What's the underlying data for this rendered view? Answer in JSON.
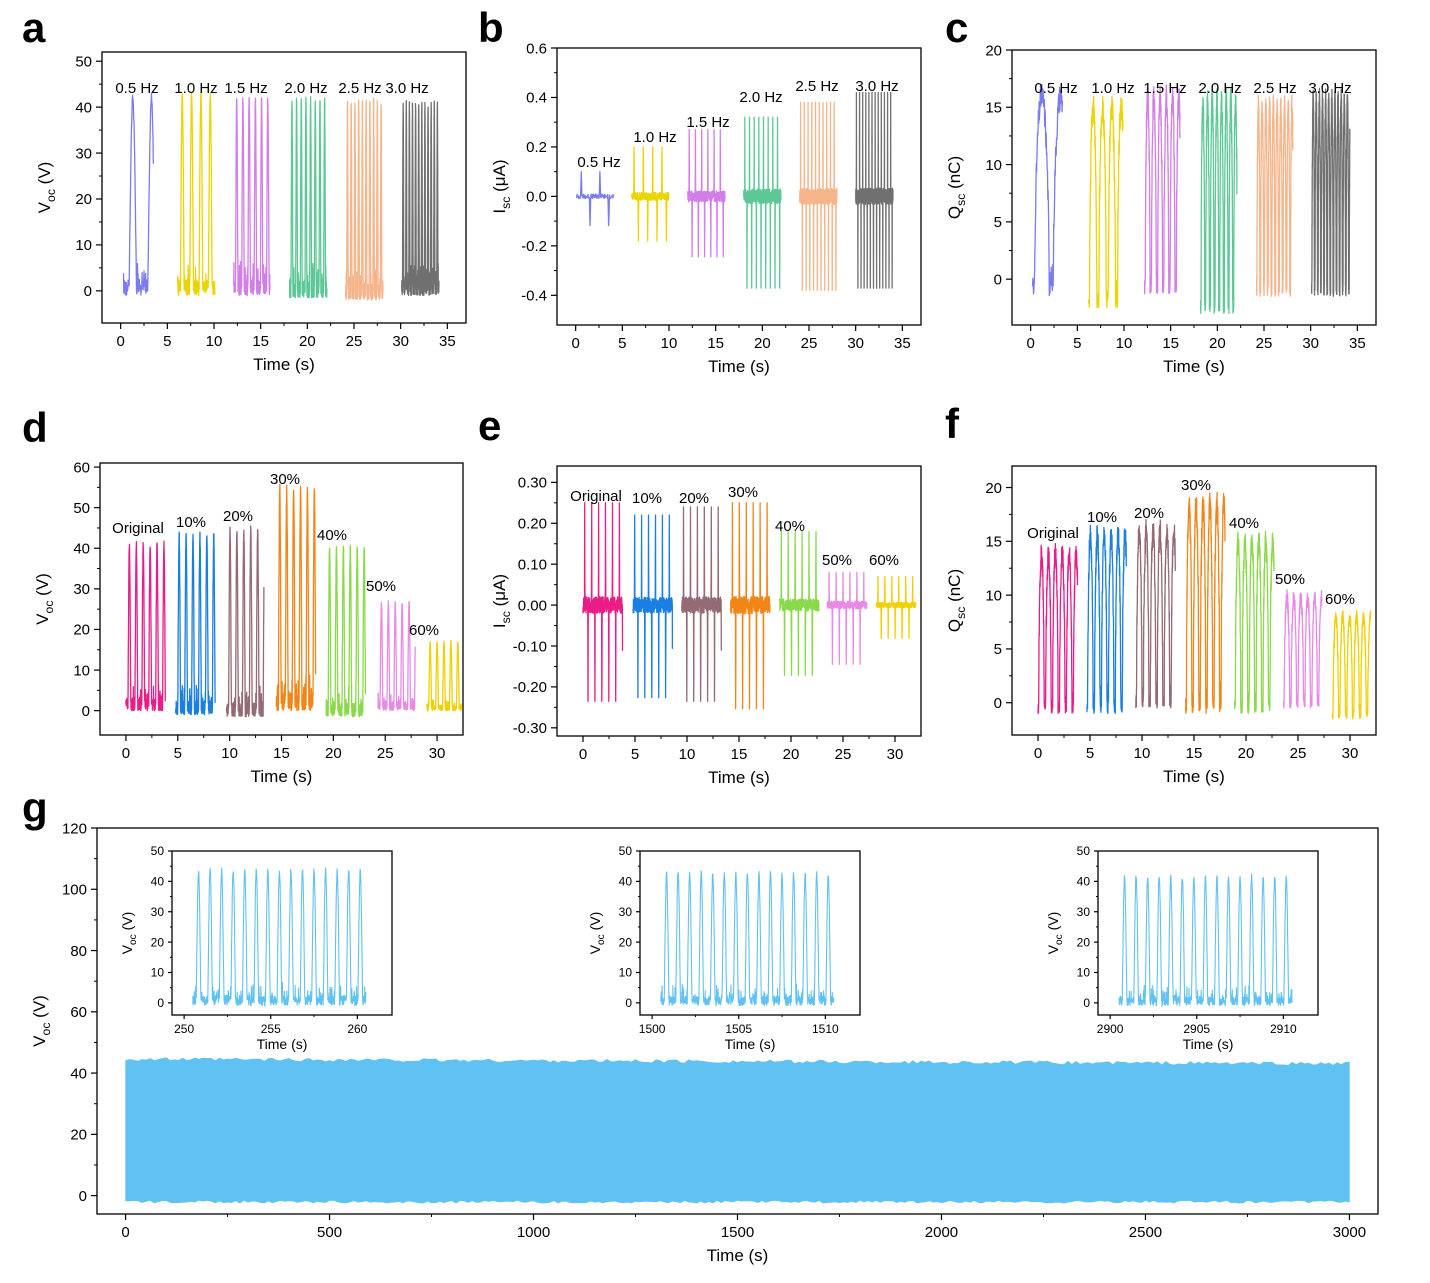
{
  "figure_labels": [
    "a",
    "b",
    "c",
    "d",
    "e",
    "f",
    "g"
  ],
  "colors": {
    "freq": [
      "#7b7bf0",
      "#ecd400",
      "#d17ee8",
      "#5cc896",
      "#f5b48a",
      "#707070"
    ],
    "comp": [
      "#ea1c86",
      "#1a7fe0",
      "#946a74",
      "#f28518",
      "#8ad94a",
      "#e889e6",
      "#f0d000"
    ],
    "endurance": "#60c2f2"
  },
  "chart_data": [
    {
      "panel": "a",
      "type": "line",
      "xlabel": "Time (s)",
      "ylabel_main": "V",
      "ylabel_sub": "oc",
      "ylabel_unit": " (V)",
      "xlim": [
        -2,
        37
      ],
      "ylim": [
        -7,
        52
      ],
      "xticks": [
        0,
        5,
        10,
        15,
        20,
        25,
        30,
        35
      ],
      "yticks": [
        0,
        10,
        20,
        30,
        40,
        50
      ],
      "series": [
        {
          "name": "0.5 Hz",
          "t_start": 0.3,
          "t_end": 3.5,
          "freq": 0.5,
          "peak": 42,
          "trough": -1
        },
        {
          "name": "1.0 Hz",
          "t_start": 6.1,
          "t_end": 10.1,
          "freq": 1.0,
          "peak": 42.5,
          "trough": -1
        },
        {
          "name": "1.5 Hz",
          "t_start": 12.1,
          "t_end": 16.0,
          "freq": 1.5,
          "peak": 41.5,
          "trough": -1
        },
        {
          "name": "2.0 Hz",
          "t_start": 18.1,
          "t_end": 22.1,
          "freq": 2.0,
          "peak": 41.5,
          "trough": -1.5
        },
        {
          "name": "2.5 Hz",
          "t_start": 24.1,
          "t_end": 28.1,
          "freq": 2.5,
          "peak": 41,
          "trough": -2
        },
        {
          "name": "3.0 Hz",
          "t_start": 30.1,
          "t_end": 34.1,
          "freq": 3.0,
          "peak": 40.5,
          "trough": -1
        }
      ]
    },
    {
      "panel": "b",
      "type": "line",
      "xlabel": "Time (s)",
      "ylabel_main": "I",
      "ylabel_sub": "sc",
      "ylabel_unit": " (μA)",
      "xlim": [
        -2,
        37
      ],
      "ylim": [
        -0.52,
        0.6
      ],
      "xticks": [
        0,
        5,
        10,
        15,
        20,
        25,
        30,
        35
      ],
      "yticks": [
        -0.4,
        -0.2,
        0.0,
        0.2,
        0.4,
        0.6
      ],
      "series": [
        {
          "name": "0.5 Hz",
          "t_start": 0.1,
          "t_end": 4.1,
          "freq": 0.5,
          "peak": 0.1,
          "trough": -0.13
        },
        {
          "name": "1.0 Hz",
          "t_start": 6.0,
          "t_end": 10.0,
          "freq": 1.0,
          "peak": 0.2,
          "trough": -0.2
        },
        {
          "name": "1.5 Hz",
          "t_start": 12.0,
          "t_end": 16.0,
          "freq": 1.5,
          "peak": 0.27,
          "trough": -0.27
        },
        {
          "name": "2.0 Hz",
          "t_start": 18.0,
          "t_end": 22.0,
          "freq": 2.0,
          "peak": 0.32,
          "trough": -0.41
        },
        {
          "name": "2.5 Hz",
          "t_start": 24.0,
          "t_end": 28.0,
          "freq": 2.5,
          "peak": 0.38,
          "trough": -0.42
        },
        {
          "name": "3.0 Hz",
          "t_start": 30.0,
          "t_end": 34.0,
          "freq": 3.0,
          "peak": 0.42,
          "trough": -0.41
        }
      ]
    },
    {
      "panel": "c",
      "type": "line",
      "xlabel": "Time (s)",
      "ylabel_main": "Q",
      "ylabel_sub": "sc",
      "ylabel_unit": " (nC)",
      "xlim": [
        -2,
        37
      ],
      "ylim": [
        -4,
        20
      ],
      "xticks": [
        0,
        5,
        10,
        15,
        20,
        25,
        30,
        35
      ],
      "yticks": [
        0,
        5,
        10,
        15,
        20
      ],
      "series": [
        {
          "name": "0.5 Hz",
          "t_start": 0.2,
          "t_end": 3.4,
          "freq": 0.5,
          "peak": 16,
          "trough": -1.5
        },
        {
          "name": "1.0 Hz",
          "t_start": 6.2,
          "t_end": 9.9,
          "freq": 1.0,
          "peak": 15,
          "trough": -2.5
        },
        {
          "name": "1.5 Hz",
          "t_start": 12.2,
          "t_end": 16.0,
          "freq": 1.5,
          "peak": 15.8,
          "trough": -1.3
        },
        {
          "name": "2.0 Hz",
          "t_start": 18.2,
          "t_end": 22.1,
          "freq": 2.0,
          "peak": 15.5,
          "trough": -3
        },
        {
          "name": "2.5 Hz",
          "t_start": 24.2,
          "t_end": 28.1,
          "freq": 2.5,
          "peak": 15,
          "trough": -1.5
        },
        {
          "name": "3.0 Hz",
          "t_start": 30.1,
          "t_end": 34.2,
          "freq": 3.0,
          "peak": 15.5,
          "trough": -1.5
        }
      ]
    },
    {
      "panel": "d",
      "type": "line",
      "xlabel": "Time (s)",
      "ylabel_main": "V",
      "ylabel_sub": "oc",
      "ylabel_unit": " (V)",
      "xlim": [
        -2.5,
        32.5
      ],
      "ylim": [
        -6,
        61
      ],
      "xticks": [
        0,
        5,
        10,
        15,
        20,
        25,
        30
      ],
      "yticks": [
        0,
        10,
        20,
        30,
        40,
        50,
        60
      ],
      "series": [
        {
          "name": "Original",
          "t_start": 0.0,
          "t_end": 3.8,
          "freq": 1.5,
          "peak": 41,
          "trough": 0
        },
        {
          "name": "10%",
          "t_start": 4.8,
          "t_end": 8.6,
          "freq": 1.5,
          "peak": 43,
          "trough": -1
        },
        {
          "name": "20%",
          "t_start": 9.7,
          "t_end": 13.3,
          "freq": 1.5,
          "peak": 44.5,
          "trough": -1.5
        },
        {
          "name": "30%",
          "t_start": 14.5,
          "t_end": 18.3,
          "freq": 1.5,
          "peak": 54.5,
          "trough": 0
        },
        {
          "name": "40%",
          "t_start": 19.3,
          "t_end": 23.1,
          "freq": 1.5,
          "peak": 40,
          "trough": -1.5
        },
        {
          "name": "50%",
          "t_start": 24.3,
          "t_end": 27.9,
          "freq": 1.5,
          "peak": 26.5,
          "trough": 0
        },
        {
          "name": "60%",
          "t_start": 29.0,
          "t_end": 32.4,
          "freq": 1.5,
          "peak": 17,
          "trough": 0
        }
      ]
    },
    {
      "panel": "e",
      "type": "line",
      "xlabel": "Time (s)",
      "ylabel_main": "I",
      "ylabel_sub": "sc",
      "ylabel_unit": " (μA)",
      "xlim": [
        -2.5,
        32.5
      ],
      "ylim": [
        -0.32,
        0.34
      ],
      "xticks": [
        0,
        5,
        10,
        15,
        20,
        25,
        30
      ],
      "yticks": [
        -0.3,
        -0.2,
        -0.1,
        0.0,
        0.1,
        0.2,
        0.3
      ],
      "series": [
        {
          "name": "Original",
          "t_start": 0.0,
          "t_end": 3.8,
          "freq": 1.5,
          "peak": 0.25,
          "trough": -0.26
        },
        {
          "name": "10%",
          "t_start": 4.8,
          "t_end": 8.6,
          "freq": 1.5,
          "peak": 0.22,
          "trough": -0.25
        },
        {
          "name": "20%",
          "t_start": 9.5,
          "t_end": 13.3,
          "freq": 1.5,
          "peak": 0.24,
          "trough": -0.26
        },
        {
          "name": "30%",
          "t_start": 14.2,
          "t_end": 18.0,
          "freq": 1.5,
          "peak": 0.25,
          "trough": -0.28
        },
        {
          "name": "40%",
          "t_start": 18.9,
          "t_end": 22.7,
          "freq": 1.5,
          "peak": 0.18,
          "trough": -0.19
        },
        {
          "name": "50%",
          "t_start": 23.5,
          "t_end": 27.3,
          "freq": 1.5,
          "peak": 0.08,
          "trough": -0.16
        },
        {
          "name": "60%",
          "t_start": 28.2,
          "t_end": 32.0,
          "freq": 1.5,
          "peak": 0.07,
          "trough": -0.09
        }
      ]
    },
    {
      "panel": "f",
      "type": "line",
      "xlabel": "Time (s)",
      "ylabel_main": "Q",
      "ylabel_sub": "sc",
      "ylabel_unit": " (nC)",
      "xlim": [
        -2.5,
        32.5
      ],
      "ylim": [
        -3,
        22
      ],
      "xticks": [
        0,
        5,
        10,
        15,
        20,
        25,
        30
      ],
      "yticks": [
        0,
        5,
        10,
        15,
        20
      ],
      "series": [
        {
          "name": "Original",
          "t_start": 0.0,
          "t_end": 3.8,
          "freq": 1.5,
          "peak": 13.8,
          "trough": -1
        },
        {
          "name": "10%",
          "t_start": 4.7,
          "t_end": 8.5,
          "freq": 1.5,
          "peak": 15.5,
          "trough": -1
        },
        {
          "name": "20%",
          "t_start": 9.4,
          "t_end": 13.2,
          "freq": 1.5,
          "peak": 16,
          "trough": -0.5
        },
        {
          "name": "30%",
          "t_start": 14.2,
          "t_end": 18.0,
          "freq": 1.5,
          "peak": 18.3,
          "trough": -1
        },
        {
          "name": "40%",
          "t_start": 18.9,
          "t_end": 22.7,
          "freq": 1.5,
          "peak": 15,
          "trough": -1
        },
        {
          "name": "50%",
          "t_start": 23.6,
          "t_end": 27.3,
          "freq": 1.5,
          "peak": 9.8,
          "trough": -0.5
        },
        {
          "name": "60%",
          "t_start": 28.3,
          "t_end": 32.0,
          "freq": 1.5,
          "peak": 8,
          "trough": -1.5
        }
      ]
    },
    {
      "panel": "g",
      "type": "area",
      "xlabel": "Time (s)",
      "ylabel_main": "V",
      "ylabel_sub": "oc",
      "ylabel_unit": " (V)",
      "xlim": [
        -70,
        3070
      ],
      "ylim": [
        -6,
        120
      ],
      "xticks": [
        0,
        500,
        1000,
        1500,
        2000,
        2500,
        3000
      ],
      "yticks": [
        0,
        20,
        40,
        60,
        80,
        100,
        120
      ],
      "envelope": {
        "t_start": 0,
        "t_end": 3000,
        "upper_start": 44.5,
        "upper_end": 43,
        "lower": -2
      },
      "insets": [
        {
          "type": "line",
          "xlabel": "Time (s)",
          "ylabel_main": "V",
          "ylabel_sub": "oc",
          "ylabel_unit": " (V)",
          "xlim": [
            249.3,
            262.0
          ],
          "ylim": [
            -4,
            50
          ],
          "xticks": [
            250,
            255,
            260
          ],
          "yticks": [
            0,
            10,
            20,
            30,
            40,
            50
          ],
          "t_start": 250.5,
          "t_end": 260.5,
          "freq": 1.5,
          "peak": 43.5,
          "trough": -1
        },
        {
          "type": "line",
          "xlabel": "Time (s)",
          "ylabel_main": "V",
          "ylabel_sub": "oc",
          "ylabel_unit": " (V)",
          "xlim": [
            1499.3,
            1512.0
          ],
          "ylim": [
            -4,
            50
          ],
          "xticks": [
            1500,
            1505,
            1510
          ],
          "yticks": [
            0,
            10,
            20,
            30,
            40,
            50
          ],
          "t_start": 1500.5,
          "t_end": 1510.5,
          "freq": 1.5,
          "peak": 42.5,
          "trough": -1
        },
        {
          "type": "line",
          "xlabel": "Time (s)",
          "ylabel_main": "V",
          "ylabel_sub": "oc",
          "ylabel_unit": " (V)",
          "xlim": [
            2899.3,
            2912.0
          ],
          "ylim": [
            -4,
            50
          ],
          "xticks": [
            2900,
            2905,
            2910
          ],
          "yticks": [
            0,
            10,
            20,
            30,
            40,
            50
          ],
          "t_start": 2900.5,
          "t_end": 2910.5,
          "freq": 1.5,
          "peak": 41.5,
          "trough": -1
        }
      ]
    }
  ]
}
